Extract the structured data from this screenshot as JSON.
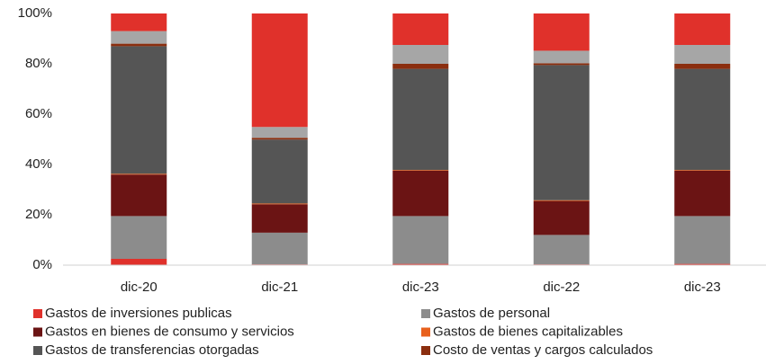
{
  "chart_data": {
    "type": "bar",
    "stacked": true,
    "categories": [
      "dic-20",
      "dic-21",
      "dic-23",
      "dic-22",
      "dic-23"
    ],
    "series": [
      {
        "name": "Gastos de inversiones publicas",
        "color": "#e0312b",
        "values": [
          2.5,
          0.3,
          0.5,
          0.3,
          0.5
        ]
      },
      {
        "name": "Gastos de personal",
        "color": "#8c8c8c",
        "values": [
          17,
          12.6,
          19,
          11.7,
          19
        ]
      },
      {
        "name": "Gastos en bienes de consumo y servicios",
        "color": "#6b1414",
        "values": [
          16.5,
          11.3,
          18,
          13.5,
          18
        ]
      },
      {
        "name": "Gastos de bienes capitalizables",
        "color": "#e8601c",
        "values": [
          0.3,
          0.3,
          0.3,
          0.3,
          0.3
        ]
      },
      {
        "name": "Gastos de transferencias otorgadas",
        "color": "#555555",
        "values": [
          50.7,
          25.4,
          40.2,
          53.7,
          40.2
        ]
      },
      {
        "name": "Costo de ventas y cargos calculados",
        "color": "#8b2e0f",
        "values": [
          1,
          0.7,
          2,
          0.7,
          2
        ]
      },
      {
        "color": "#a6a6a6",
        "values": [
          5,
          4.3,
          7.5,
          5,
          7.5
        ]
      },
      {
        "color": "#e0312b",
        "values": [
          7,
          45.1,
          12.5,
          14.8,
          12.5
        ]
      }
    ],
    "ylim": [
      0,
      100
    ],
    "yticks": [
      {
        "value": 0,
        "label": "0%"
      },
      {
        "value": 20,
        "label": "20%"
      },
      {
        "value": 40,
        "label": "40%"
      },
      {
        "value": 60,
        "label": "60%"
      },
      {
        "value": 80,
        "label": "80%"
      },
      {
        "value": 100,
        "label": "100%"
      }
    ],
    "grid": false
  }
}
